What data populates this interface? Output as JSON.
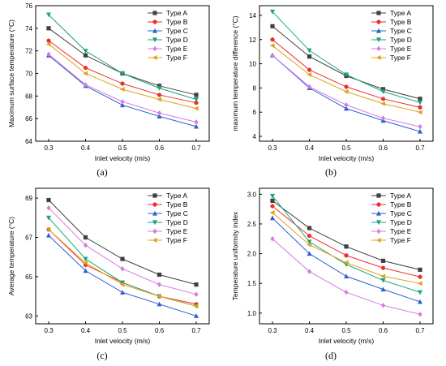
{
  "chart_data": [
    {
      "id": "a",
      "type": "line",
      "panel_label": "(a)",
      "xlabel": "Inlet velocity (m/s)",
      "ylabel": "Maximum surface temperature (°C)",
      "x": [
        0.3,
        0.4,
        0.5,
        0.6,
        0.7
      ],
      "xticks": [
        "0.3",
        "0.4",
        "0.5",
        "0.6",
        "0.7"
      ],
      "yticks": [
        "64",
        "66",
        "68",
        "70",
        "72",
        "74",
        "76"
      ],
      "ylim": [
        64,
        76
      ],
      "legend_position": "top-right",
      "series": [
        {
          "name": "Type A",
          "values": [
            74.0,
            71.6,
            70.0,
            68.9,
            68.1
          ]
        },
        {
          "name": "Type B",
          "values": [
            72.9,
            70.5,
            69.1,
            68.1,
            67.4
          ]
        },
        {
          "name": "Type C",
          "values": [
            71.6,
            68.9,
            67.2,
            66.2,
            65.3
          ]
        },
        {
          "name": "Type D",
          "values": [
            75.2,
            72.0,
            70.0,
            68.7,
            67.7
          ]
        },
        {
          "name": "Type E",
          "values": [
            71.7,
            69.0,
            67.5,
            66.5,
            65.7
          ]
        },
        {
          "name": "Type F",
          "values": [
            72.6,
            70.0,
            68.6,
            67.7,
            66.9
          ]
        }
      ]
    },
    {
      "id": "b",
      "type": "line",
      "panel_label": "(b)",
      "xlabel": "Inlet velocity (m/s)",
      "ylabel": "maximum temperature difference (°C)",
      "x": [
        0.3,
        0.4,
        0.5,
        0.6,
        0.7
      ],
      "xticks": [
        "0.3",
        "0.4",
        "0.5",
        "0.6",
        "0.7"
      ],
      "yticks": [
        "4",
        "6",
        "8",
        "10",
        "12",
        "14"
      ],
      "ylim": [
        3.6,
        14.8
      ],
      "legend_position": "top-right",
      "series": [
        {
          "name": "Type A",
          "values": [
            13.1,
            10.6,
            9.0,
            7.9,
            7.1
          ]
        },
        {
          "name": "Type B",
          "values": [
            12.0,
            9.5,
            8.1,
            7.1,
            6.4
          ]
        },
        {
          "name": "Type C",
          "values": [
            10.7,
            8.0,
            6.3,
            5.3,
            4.4
          ]
        },
        {
          "name": "Type D",
          "values": [
            14.3,
            11.1,
            9.1,
            7.7,
            6.8
          ]
        },
        {
          "name": "Type E",
          "values": [
            10.7,
            8.1,
            6.6,
            5.5,
            4.8
          ]
        },
        {
          "name": "Type F",
          "values": [
            11.5,
            9.1,
            7.7,
            6.7,
            6.0
          ]
        }
      ]
    },
    {
      "id": "c",
      "type": "line",
      "panel_label": "(c)",
      "xlabel": "Inlet velocity (m/s)",
      "ylabel": "Average temperature (°C)",
      "x": [
        0.3,
        0.4,
        0.5,
        0.6,
        0.7
      ],
      "xticks": [
        "0.3",
        "0.4",
        "0.5",
        "0.6",
        "0.7"
      ],
      "yticks": [
        "63",
        "65",
        "67",
        "69"
      ],
      "ylim": [
        62.6,
        69.5
      ],
      "legend_position": "top-right",
      "series": [
        {
          "name": "Type A",
          "values": [
            68.9,
            67.0,
            65.9,
            65.1,
            64.6
          ]
        },
        {
          "name": "Type B",
          "values": [
            67.4,
            65.6,
            64.7,
            64.0,
            63.6
          ]
        },
        {
          "name": "Type C",
          "values": [
            67.1,
            65.3,
            64.2,
            63.6,
            63.0
          ]
        },
        {
          "name": "Type D",
          "values": [
            68.0,
            65.9,
            64.7,
            64.0,
            63.5
          ]
        },
        {
          "name": "Type E",
          "values": [
            68.5,
            66.6,
            65.4,
            64.6,
            64.1
          ]
        },
        {
          "name": "Type F",
          "values": [
            67.4,
            65.7,
            64.6,
            64.0,
            63.5
          ]
        }
      ]
    },
    {
      "id": "d",
      "type": "line",
      "panel_label": "(d)",
      "xlabel": "Inlet velocity (m/s)",
      "ylabel": "Temperature uniformity index",
      "x": [
        0.3,
        0.4,
        0.5,
        0.6,
        0.7
      ],
      "xticks": [
        "0.3",
        "0.4",
        "0.5",
        "0.6",
        "0.7"
      ],
      "yticks": [
        "1.0",
        "1.5",
        "2.0",
        "2.5",
        "3.0"
      ],
      "ylim": [
        0.82,
        3.1
      ],
      "legend_position": "top-right",
      "series": [
        {
          "name": "Type A",
          "values": [
            2.89,
            2.43,
            2.12,
            1.88,
            1.73
          ]
        },
        {
          "name": "Type B",
          "values": [
            2.8,
            2.3,
            1.97,
            1.76,
            1.61
          ]
        },
        {
          "name": "Type C",
          "values": [
            2.6,
            2.0,
            1.62,
            1.4,
            1.19
          ]
        },
        {
          "name": "Type D",
          "values": [
            2.97,
            2.2,
            1.82,
            1.55,
            1.35
          ]
        },
        {
          "name": "Type E",
          "values": [
            2.25,
            1.7,
            1.35,
            1.13,
            0.98
          ]
        },
        {
          "name": "Type F",
          "values": [
            2.69,
            2.15,
            1.85,
            1.62,
            1.5
          ]
        }
      ]
    }
  ],
  "series_styles": [
    {
      "color": "#404040",
      "marker": "square"
    },
    {
      "color": "#e8302c",
      "marker": "circle"
    },
    {
      "color": "#2f5fd0",
      "marker": "triangle-up"
    },
    {
      "color": "#1aa57a",
      "marker": "triangle-down"
    },
    {
      "color": "#d67ae0",
      "marker": "diamond"
    },
    {
      "color": "#e0a21b",
      "marker": "triangle-left"
    }
  ]
}
